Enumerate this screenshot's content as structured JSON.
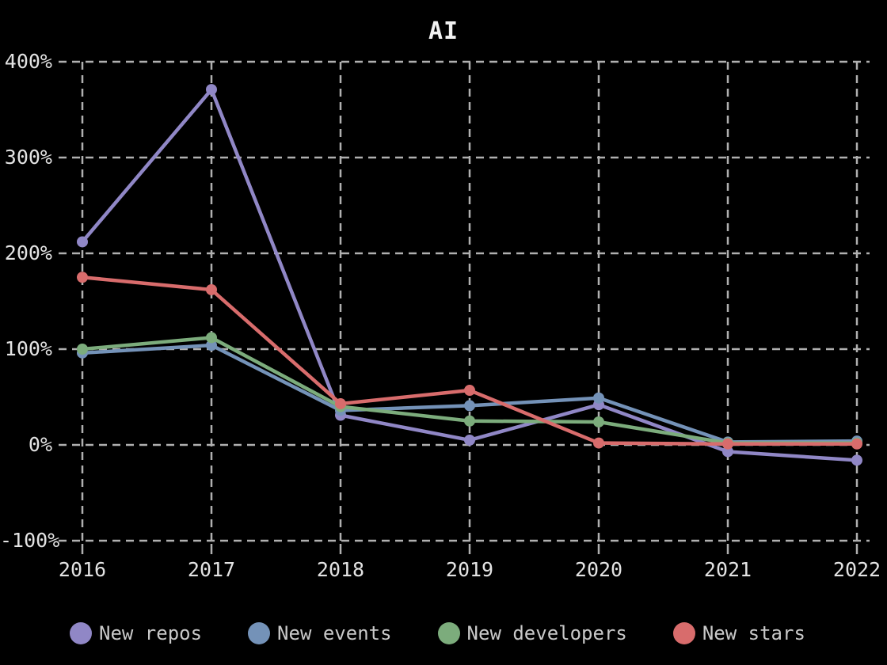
{
  "chart_data": {
    "type": "line",
    "title": "AI",
    "x": [
      "2016",
      "2017",
      "2018",
      "2019",
      "2020",
      "2021",
      "2022"
    ],
    "series": [
      {
        "name": "New repos",
        "color": "#9087c6",
        "values": [
          212,
          371,
          31,
          5,
          42,
          -7,
          -16
        ]
      },
      {
        "name": "New events",
        "color": "#7492b8",
        "values": [
          96,
          104,
          36,
          41,
          49,
          3,
          4
        ]
      },
      {
        "name": "New developers",
        "color": "#7cac7c",
        "values": [
          100,
          112,
          40,
          25,
          24,
          2,
          2
        ]
      },
      {
        "name": "New stars",
        "color": "#d86c6c",
        "values": [
          175,
          162,
          43,
          57,
          2,
          1,
          1
        ]
      }
    ],
    "yticks": [
      {
        "value": -100,
        "label": "-100%"
      },
      {
        "value": 0,
        "label": "0%"
      },
      {
        "value": 100,
        "label": "100%"
      },
      {
        "value": 200,
        "label": "200%"
      },
      {
        "value": 300,
        "label": "300%"
      },
      {
        "value": 400,
        "label": "400%"
      }
    ],
    "ylim": [
      -100,
      400
    ],
    "grid": "dashed",
    "legend_position": "bottom",
    "colors": {
      "background": "#000000",
      "gridline": "#b0b0b0",
      "axis_text": "#e3e3e3",
      "legend_text": "#c9c9c9",
      "title_text": "#f2f2f2"
    }
  }
}
